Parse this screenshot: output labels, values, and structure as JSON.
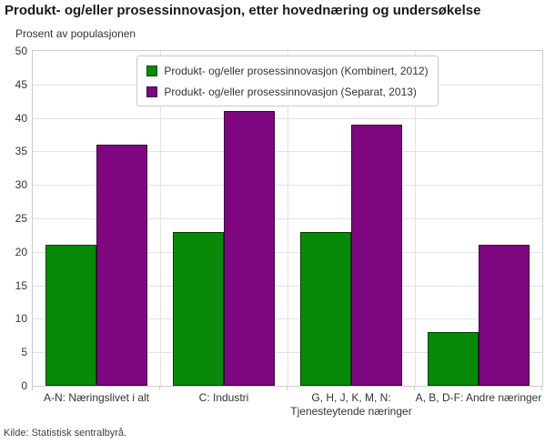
{
  "source": "Kilde: Statistisk sentralbyrå.",
  "colors": {
    "series_green": "#088A08",
    "series_purple": "#7F0681",
    "grid": "#e2e2e2",
    "plot_border": "#cccccc",
    "bar_border": "rgba(0,0,0,0.55)",
    "axis_text": "#333333"
  },
  "chart_data": {
    "type": "bar",
    "title": "Produkt- og/eller prosessinnovasjon, etter hovednæring og undersøkelse",
    "ylabel": "Prosent av populasjonen",
    "xlabel": "",
    "categories": [
      "A-N: Næringslivet i alt",
      "C: Industri",
      "G, H, J, K, M, N: Tjenesteytende næringer",
      "A, B, D-F: Andre næringer"
    ],
    "series": [
      {
        "name": "Produkt- og/eller prosessinnovasjon (Kombinert, 2012)",
        "color": "#088A08",
        "values": [
          21,
          23,
          23,
          8
        ]
      },
      {
        "name": "Produkt- og/eller prosessinnovasjon (Separat, 2013)",
        "color": "#7F0681",
        "values": [
          36,
          41,
          39,
          21
        ]
      }
    ],
    "ylim": [
      0,
      50
    ],
    "ytick_step": 5,
    "grid": true,
    "legend_position": "top-center"
  }
}
